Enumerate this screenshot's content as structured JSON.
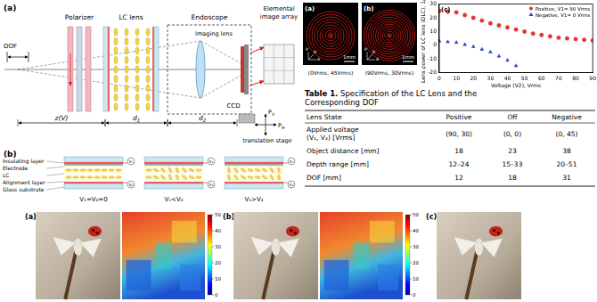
{
  "diagram_a": {
    "panel": "(a)",
    "polarizer": "Polarizer",
    "lc_lens": "LC lens",
    "endoscope": "Endoscope",
    "elemental_image_array": [
      "Elemental",
      "image array"
    ],
    "imaging_lens": "Imaging lens",
    "ccd": "CCD",
    "dof": "DOF",
    "z": "z(V)",
    "d1": {
      "text": "d",
      "sub": "1"
    },
    "d2": {
      "text": "d",
      "sub": "2"
    },
    "ph": {
      "text": "P",
      "sub": "H"
    },
    "pv": {
      "text": "P",
      "sub": "V"
    },
    "stage": "translation stage"
  },
  "diagram_b": {
    "panel": "(b)",
    "layers": [
      "Insulating layer",
      "Electrode",
      "LC",
      "Alignment layer",
      "Glass substrate"
    ],
    "cells": [
      "V₁=V₂=0",
      "V₁<V₂",
      "V₁>V₂"
    ],
    "sources": [
      "V₁",
      "V₂"
    ]
  },
  "lens_images": {
    "scale_bar": "1mm",
    "axes": [
      "P",
      "R",
      "A"
    ],
    "images": [
      {
        "panel": "(a)",
        "voltages": "(0Vrms, 45Vrms)"
      },
      {
        "panel": "(b)",
        "voltages": "(90Vrms, 30Vrms)"
      }
    ]
  },
  "chart_data": {
    "type": "scatter",
    "title": "(c)",
    "x_label": "Voltage (V2), Vrms",
    "y_label": "Lens power of LC lens (DLC), 1/m",
    "xlim": [
      0,
      90
    ],
    "xticks": [
      0,
      10,
      20,
      30,
      40,
      50,
      60,
      70,
      80,
      90
    ],
    "ylim": [
      -20,
      30
    ],
    "yticks": [
      -20,
      -10,
      0,
      10,
      20,
      30
    ],
    "grid": false,
    "legend": "upper right",
    "series": [
      {
        "name": "Positive, V1= 90 Vrms",
        "color": "#e8302c",
        "marker": "circle",
        "x": [
          0,
          5,
          10,
          15,
          20,
          25,
          30,
          35,
          40,
          45,
          50,
          55,
          60,
          65,
          70,
          75,
          80,
          85,
          90
        ],
        "values": [
          25,
          24.5,
          24,
          22,
          20,
          18,
          16,
          14.5,
          13,
          11.5,
          10,
          8.5,
          7.5,
          6.5,
          5.5,
          5,
          4.5,
          4,
          3.5
        ]
      },
      {
        "name": "Negative, V1= 0 Vrms",
        "color": "#2b3ec9",
        "marker": "triangle",
        "x": [
          0,
          5,
          10,
          15,
          20,
          25,
          30,
          35,
          40,
          45
        ],
        "values": [
          3,
          2.5,
          2,
          0.5,
          -1,
          -3,
          -5,
          -8,
          -11,
          -15
        ]
      }
    ]
  },
  "table": {
    "title": "Table 1.",
    "caption_lines": [
      "Specification of the LC Lens and the",
      "Corresponding DOF"
    ],
    "header": [
      "Lens State",
      "Positive",
      "Off",
      "Negative"
    ],
    "rows": [
      [
        [
          "Applied voltage",
          "(V₁, V₂) [Vrms]"
        ],
        "(90, 30)",
        "(0, 0)",
        "(0, 45)"
      ],
      [
        "Object distance [mm]",
        "18",
        "23",
        "38"
      ],
      [
        "Depth range [mm]",
        "12–24",
        "15–33",
        "20–51"
      ],
      [
        "DOF [mm]",
        "12",
        "18",
        "31"
      ]
    ]
  },
  "photos": {
    "panels": [
      "(a)",
      "(b)",
      "(c)"
    ],
    "colorbar": {
      "range": [
        0,
        50
      ],
      "ticks": [
        0,
        10,
        20,
        30,
        40,
        50
      ]
    }
  }
}
